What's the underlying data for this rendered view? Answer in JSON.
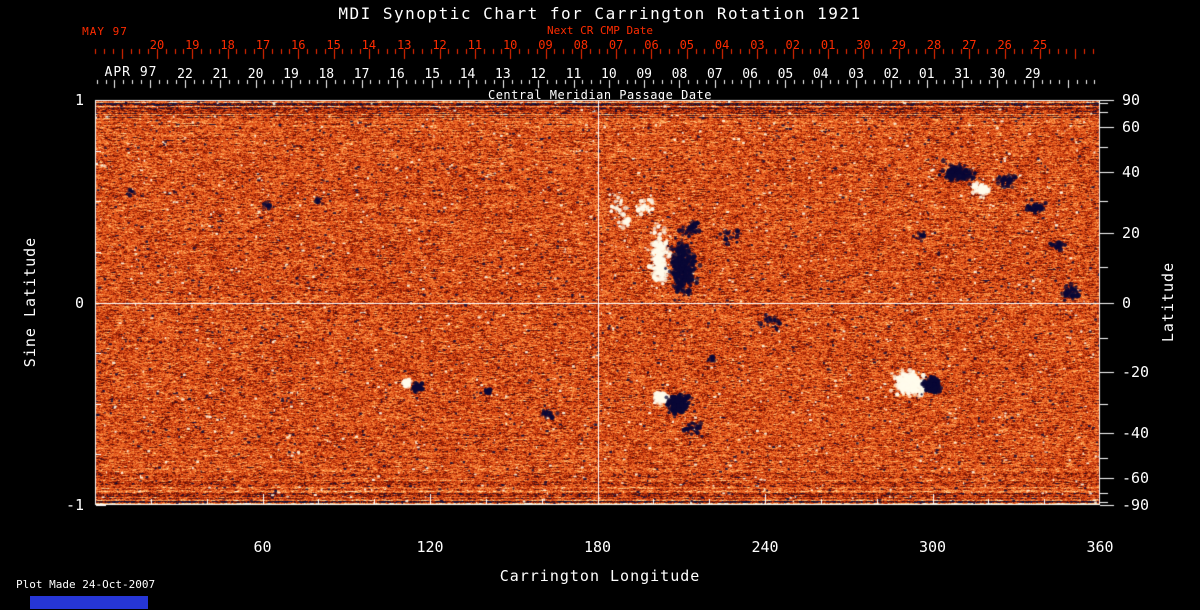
{
  "title": "MDI Synoptic Chart for Carrington Rotation 1921",
  "footer": {
    "plot_made": "Plot Made 24-Oct-2007"
  },
  "colors": {
    "background": "#000000",
    "axis_white": "#ffffff",
    "axis_red": "#ff2c00",
    "blue_bar": "#2636d6"
  },
  "chart_data": {
    "type": "heatmap",
    "title": "MDI Synoptic Chart for Carrington Rotation 1921",
    "description": "Solar photospheric magnetogram synoptic map: orange/red salt-and-pepper background, dark navy = negative polarity, white = positive polarity active regions",
    "xlabel": "Carrington Longitude",
    "x_range": [
      0,
      360
    ],
    "x_major_ticks": [
      60,
      120,
      180,
      240,
      300,
      360
    ],
    "x_minor_step": 20,
    "ylabel_left": "Sine Latitude",
    "y_left_range": [
      -1,
      1
    ],
    "y_left_ticks": [
      1,
      0,
      -1
    ],
    "y_left_minor_step": 0.25,
    "ylabel_right": "Latitude",
    "y_right_ticks": [
      90,
      60,
      40,
      20,
      0,
      -20,
      -40,
      -60,
      -90
    ],
    "y_right_minor_step_deg": 10,
    "crosshair": {
      "longitude": 180,
      "sine_latitude": 0
    },
    "top_axes": {
      "red": {
        "month_label": "MAY 97",
        "axis_title": "Next CR CMP Date",
        "day_labels": [
          "20",
          "19",
          "18",
          "17",
          "16",
          "15",
          "14",
          "13",
          "12",
          "11",
          "10",
          "09",
          "08",
          "07",
          "06",
          "05",
          "04",
          "03",
          "02",
          "01",
          "30",
          "29",
          "28",
          "27",
          "26",
          "25"
        ]
      },
      "white": {
        "month_label": "APR 97",
        "axis_title": "Central Meridian Passage Date",
        "day_labels": [
          "22",
          "21",
          "20",
          "19",
          "18",
          "17",
          "16",
          "15",
          "14",
          "13",
          "12",
          "11",
          "10",
          "09",
          "08",
          "07",
          "06",
          "05",
          "04",
          "03",
          "02",
          "01",
          "31",
          "30",
          "29"
        ]
      }
    },
    "colormap": [
      [
        -1.8,
        "#04041e"
      ],
      [
        -1.25,
        "#10124e"
      ],
      [
        -0.95,
        "#3c0c10"
      ],
      [
        -0.55,
        "#8c1a04"
      ],
      [
        -0.2,
        "#c43a0e"
      ],
      [
        0.0,
        "#de4f18"
      ],
      [
        0.3,
        "#ef6c28"
      ],
      [
        0.7,
        "#fb9b4e"
      ],
      [
        1.1,
        "#ffd391"
      ],
      [
        1.6,
        "#fff6dc"
      ],
      [
        2.2,
        "#fffdf4"
      ]
    ],
    "noise": {
      "seed": 1921,
      "speckles": 2600
    },
    "active_regions": [
      {
        "lon": 202.5,
        "slat": 0.21,
        "polarity": "pos",
        "sx": 4,
        "sy": 13,
        "n": 280
      },
      {
        "lon": 210.5,
        "slat": 0.17,
        "polarity": "neg",
        "sx": 6,
        "sy": 12,
        "n": 450
      },
      {
        "lon": 214,
        "slat": 0.36,
        "polarity": "neg",
        "sx": 5,
        "sy": 4,
        "n": 50
      },
      {
        "lon": 197,
        "slat": 0.47,
        "polarity": "pos",
        "sx": 4,
        "sy": 4,
        "n": 35
      },
      {
        "lon": 190,
        "slat": 0.4,
        "polarity": "pos",
        "sx": 3,
        "sy": 5,
        "n": 20
      },
      {
        "lon": 203,
        "slat": -0.47,
        "polarity": "pos",
        "sx": 3,
        "sy": 2.5,
        "n": 110
      },
      {
        "lon": 209,
        "slat": -0.5,
        "polarity": "neg",
        "sx": 5,
        "sy": 4.5,
        "n": 280
      },
      {
        "lon": 214,
        "slat": -0.62,
        "polarity": "neg",
        "sx": 4,
        "sy": 3,
        "n": 35
      },
      {
        "lon": 292,
        "slat": -0.4,
        "polarity": "pos",
        "sx": 6,
        "sy": 4.5,
        "n": 500
      },
      {
        "lon": 300,
        "slat": -0.41,
        "polarity": "neg",
        "sx": 3.5,
        "sy": 3.5,
        "n": 220
      },
      {
        "lon": 112,
        "slat": -0.4,
        "polarity": "pos",
        "sx": 2,
        "sy": 2,
        "n": 45
      },
      {
        "lon": 115.5,
        "slat": -0.42,
        "polarity": "neg",
        "sx": 2.2,
        "sy": 2,
        "n": 55
      },
      {
        "lon": 141,
        "slat": -0.44,
        "polarity": "neg",
        "sx": 1.8,
        "sy": 1.5,
        "n": 22
      },
      {
        "lon": 309,
        "slat": 0.64,
        "polarity": "neg",
        "sx": 7,
        "sy": 4,
        "n": 180
      },
      {
        "lon": 317,
        "slat": 0.56,
        "polarity": "pos",
        "sx": 4.5,
        "sy": 3,
        "n": 70
      },
      {
        "lon": 327,
        "slat": 0.6,
        "polarity": "neg",
        "sx": 4,
        "sy": 3,
        "n": 60
      },
      {
        "lon": 337,
        "slat": 0.47,
        "polarity": "neg",
        "sx": 5,
        "sy": 3,
        "n": 55
      },
      {
        "lon": 345,
        "slat": 0.28,
        "polarity": "neg",
        "sx": 3.5,
        "sy": 2.5,
        "n": 22
      },
      {
        "lon": 349,
        "slat": 0.05,
        "polarity": "neg",
        "sx": 4,
        "sy": 3,
        "n": 45
      },
      {
        "lon": 228,
        "slat": 0.33,
        "polarity": "neg",
        "sx": 8,
        "sy": 4,
        "n": 28
      },
      {
        "lon": 243,
        "slat": -0.1,
        "polarity": "neg",
        "sx": 6,
        "sy": 4,
        "n": 26
      },
      {
        "lon": 187,
        "slat": 0.5,
        "polarity": "pos",
        "sx": 5,
        "sy": 6,
        "n": 22
      },
      {
        "lon": 162,
        "slat": -0.55,
        "polarity": "neg",
        "sx": 4,
        "sy": 2.5,
        "n": 22
      },
      {
        "lon": 62,
        "slat": 0.48,
        "polarity": "neg",
        "sx": 2.5,
        "sy": 1.8,
        "n": 16
      },
      {
        "lon": 13,
        "slat": 0.54,
        "polarity": "neg",
        "sx": 2.5,
        "sy": 1.8,
        "n": 14
      },
      {
        "lon": 80,
        "slat": 0.5,
        "polarity": "neg",
        "sx": 2.5,
        "sy": 1.8,
        "n": 12
      },
      {
        "lon": 296,
        "slat": 0.33,
        "polarity": "neg",
        "sx": 3,
        "sy": 2.2,
        "n": 16
      },
      {
        "lon": 221,
        "slat": -0.28,
        "polarity": "neg",
        "sx": 2.5,
        "sy": 2,
        "n": 14
      }
    ]
  }
}
